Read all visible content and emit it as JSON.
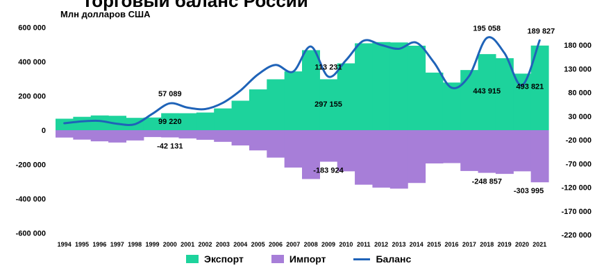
{
  "chart_data": {
    "type": "bar",
    "title": "Торговый баланс России",
    "subtitle": "Млн долларов США",
    "categories": [
      "1994",
      "1995",
      "1996",
      "1997",
      "1998",
      "1999",
      "2000",
      "2001",
      "2002",
      "2003",
      "2004",
      "2005",
      "2006",
      "2007",
      "2008",
      "2009",
      "2010",
      "2011",
      "2012",
      "2013",
      "2014",
      "2015",
      "2016",
      "2017",
      "2018",
      "2019",
      "2020",
      "2021"
    ],
    "series": [
      {
        "name": "Экспорт",
        "type": "bar",
        "axis": "left",
        "color": "#1DD39C",
        "values": [
          67000,
          78000,
          86000,
          84000,
          72000,
          74000,
          99220,
          99000,
          103000,
          127000,
          172000,
          238000,
          297000,
          343000,
          467000,
          297155,
          390000,
          507000,
          514000,
          512000,
          493000,
          336000,
          278000,
          351000,
          443915,
          420000,
          330000,
          493821
        ]
      },
      {
        "name": "Импорт",
        "type": "bar",
        "axis": "left",
        "color": "#A77ED8",
        "values": [
          -43000,
          -55000,
          -65000,
          -72000,
          -60000,
          -40000,
          -42131,
          -48000,
          -56000,
          -68000,
          -89000,
          -118000,
          -160000,
          -218000,
          -285000,
          -183924,
          -240000,
          -318000,
          -335000,
          -341000,
          -308000,
          -194000,
          -192000,
          -238000,
          -248857,
          -255000,
          -240000,
          -303995
        ]
      },
      {
        "name": "Баланс",
        "type": "line",
        "axis": "right",
        "color": "#1F63B8",
        "values": [
          15000,
          19000,
          20000,
          14000,
          13000,
          35000,
          57089,
          48000,
          45000,
          58000,
          84000,
          118000,
          138000,
          124000,
          177000,
          113231,
          148000,
          189000,
          180000,
          172000,
          185000,
          143000,
          90000,
          115000,
          195058,
          163000,
          95000,
          189827
        ]
      }
    ],
    "data_labels": [
      {
        "series": "Баланс",
        "category": "2000",
        "text": "57 089"
      },
      {
        "series": "Экспорт",
        "category": "2000",
        "text": "99 220"
      },
      {
        "series": "Импорт",
        "category": "2000",
        "text": "-42 131"
      },
      {
        "series": "Баланс",
        "category": "2009",
        "text": "113 231"
      },
      {
        "series": "Экспорт",
        "category": "2009",
        "text": "297 155"
      },
      {
        "series": "Импорт",
        "category": "2009",
        "text": "-183 924"
      },
      {
        "series": "Баланс",
        "category": "2018",
        "text": "195 058"
      },
      {
        "series": "Экспорт",
        "category": "2018",
        "text": "443 915"
      },
      {
        "series": "Импорт",
        "category": "2018",
        "text": "-248 857"
      },
      {
        "series": "Баланс",
        "category": "2021",
        "text": "189 827"
      },
      {
        "series": "Экспорт",
        "category": "2021",
        "text": "493 821"
      },
      {
        "series": "Импорт",
        "category": "2021",
        "text": "-303 995"
      }
    ],
    "left_ticks": [
      "600 000",
      "400 000",
      "200 000",
      "0",
      "-200 000",
      "-400 000",
      "-600 000"
    ],
    "right_ticks": [
      "180 000",
      "130 000",
      "80 000",
      "30 000",
      "-20 000",
      "-70 000",
      "-120 000",
      "-170 000",
      "-220 000"
    ],
    "ylim_left": [
      -600000,
      600000
    ],
    "ylim_right": [
      -220000,
      180000
    ],
    "grid": false,
    "legend_position": "bottom"
  }
}
